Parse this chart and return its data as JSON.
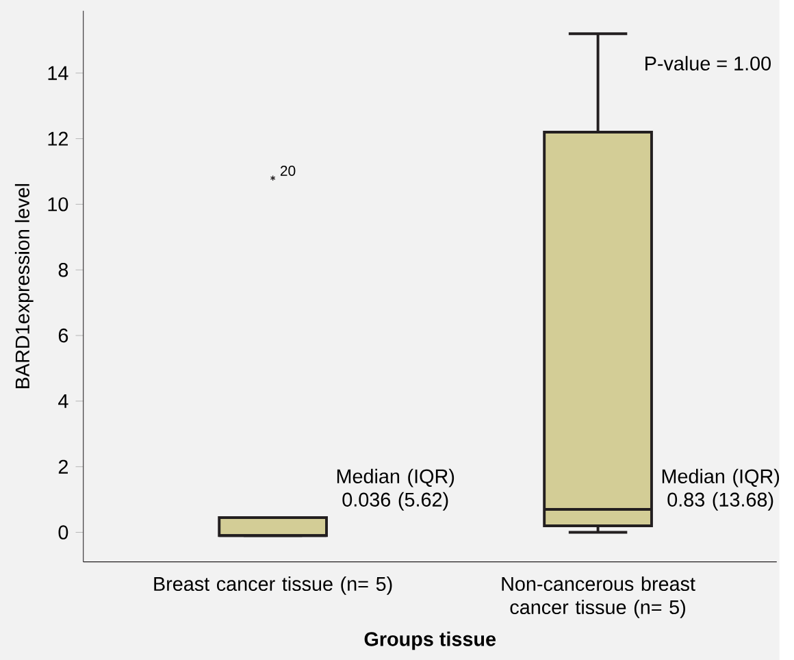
{
  "chart_data": {
    "type": "box",
    "xlabel": "Groups tissue",
    "ylabel": "BARD1expression level",
    "categories": [
      "Breast cancer tissue (n= 5)",
      "Non-cancerous breast cancer tissue (n= 5)"
    ],
    "boxes": [
      {
        "low": -0.1,
        "q1": -0.1,
        "median": -0.1,
        "q3": 0.45,
        "high": 0.45,
        "outliers": [
          10.8
        ]
      },
      {
        "low": 0,
        "q1": 0.2,
        "median": 0.7,
        "q3": 12.2,
        "high": 15.2
      }
    ],
    "color": "#d3cd96",
    "ylim": [
      -0.9,
      15.9
    ],
    "yticks": [
      0,
      2,
      4,
      6,
      8,
      10,
      12,
      14
    ],
    "annotations": [
      "P-value = 1.00",
      "20",
      "Median (IQR) 0.036 (5.62)",
      "Median (IQR) 0.83 (13.68)"
    ]
  }
}
